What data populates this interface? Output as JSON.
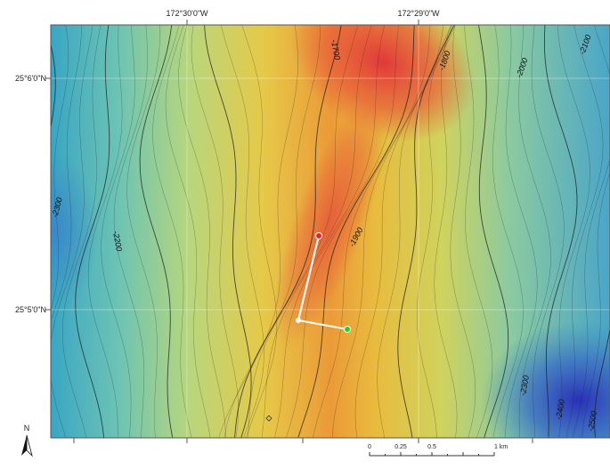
{
  "map": {
    "longitude_labels": [
      "172°30'0\"W",
      "172°29'0\"W"
    ],
    "latitude_labels": [
      "25°6'0\"N",
      "25°5'0\"N"
    ],
    "contour_labels": [
      "-1700",
      "-1800",
      "-2000",
      "-2100",
      "-2300",
      "-2200",
      "-1900",
      "-2300",
      "-2400",
      "-2500"
    ],
    "north_label": "N",
    "scale_bar": {
      "labels": [
        "0",
        "0.25",
        "0.5",
        "1 km"
      ]
    }
  }
}
